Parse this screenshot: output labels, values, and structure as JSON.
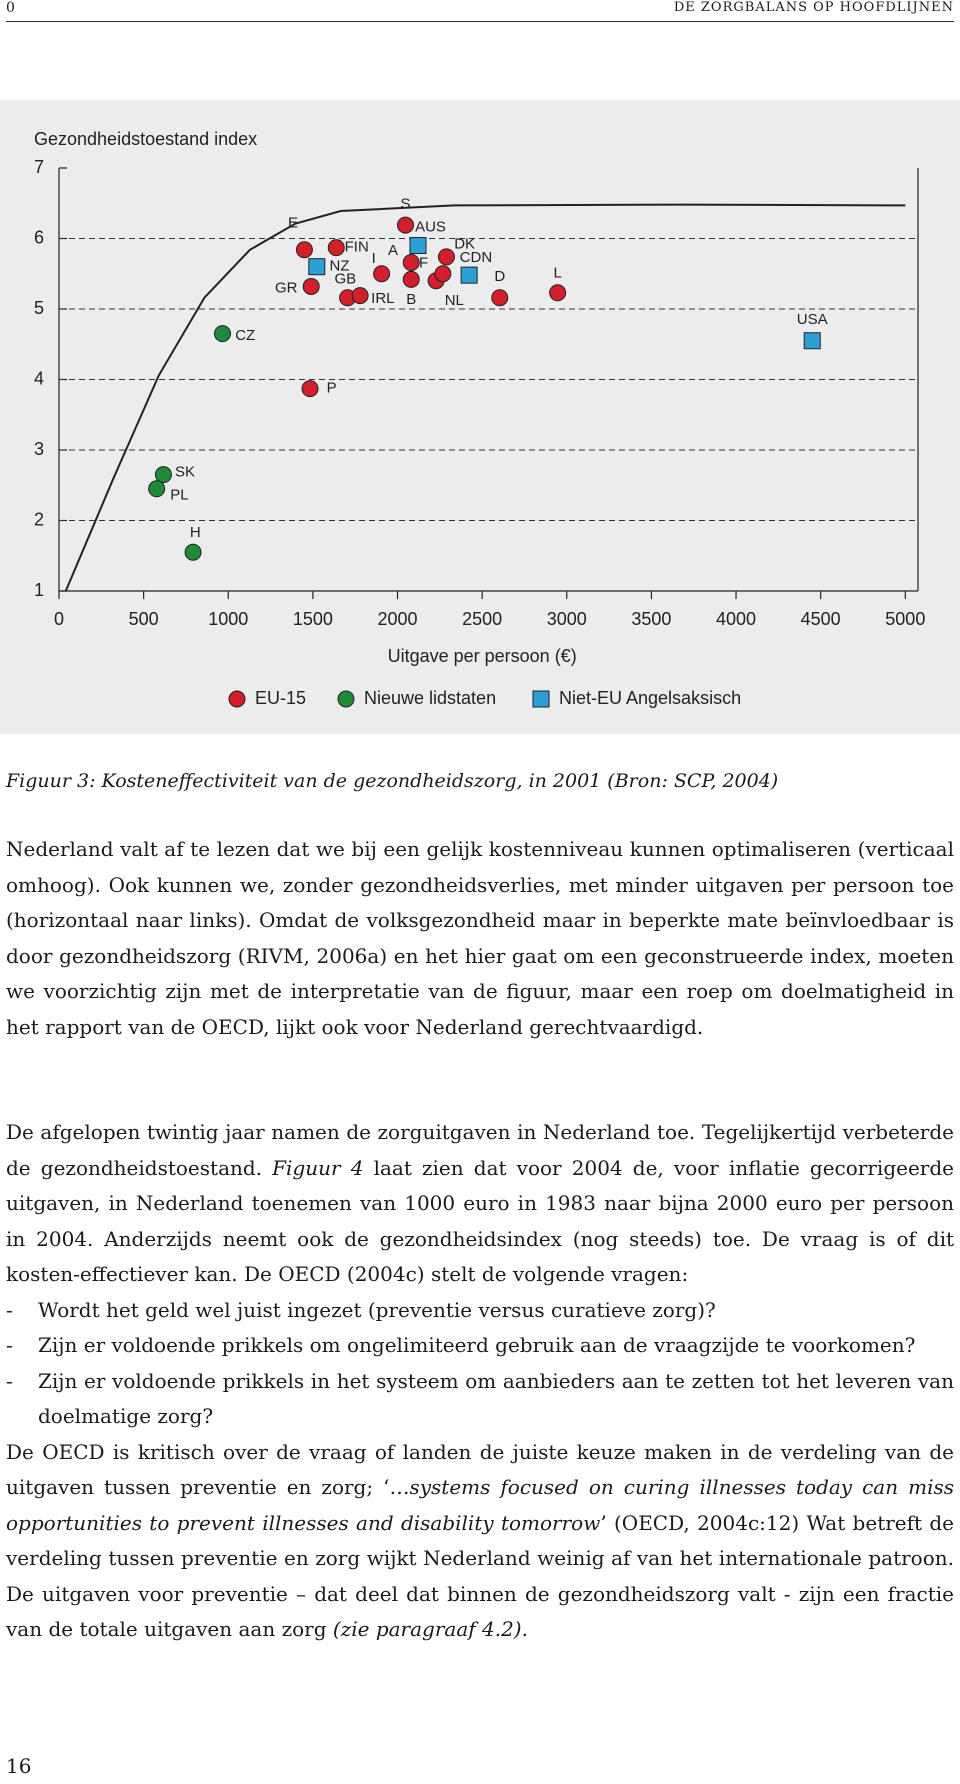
{
  "header": {
    "page_left": "0",
    "title": "DE ZORGBALANS OP HOOFDLIJNEN"
  },
  "chart_data": {
    "type": "scatter",
    "y_label": "Gezondheidstoestand index",
    "x_label": "Uitgave per persoon (€)",
    "xlim": [
      0,
      5075
    ],
    "ylim": [
      1,
      7
    ],
    "xticks": [
      0,
      500,
      1000,
      1500,
      2000,
      2500,
      3000,
      3500,
      4000,
      4500,
      5000
    ],
    "yticks": [
      1,
      2,
      3,
      4,
      5,
      6,
      7
    ],
    "grid": true,
    "series": [
      {
        "name": "EU-15",
        "color": "#d21f2c",
        "marker": "circle",
        "labels": [
          "E",
          "FIN",
          "GR",
          "GB",
          "IRL",
          "I",
          "S",
          "A",
          "B",
          "NL",
          "F",
          "DK",
          "D",
          "L",
          "P"
        ],
        "x": [
          1450,
          1638,
          1490,
          1705,
          1779,
          1906,
          2047,
          2081,
          2081,
          2228,
          2268,
          2289,
          2604,
          2946,
          1483
        ],
        "values": [
          5.84,
          5.87,
          5.32,
          5.16,
          5.19,
          5.5,
          6.19,
          5.66,
          5.42,
          5.4,
          5.5,
          5.74,
          5.16,
          5.23,
          3.87
        ]
      },
      {
        "name": "Nieuwe lidstaten",
        "color": "#1f8a3a",
        "marker": "circle",
        "labels": [
          "CZ",
          "SK",
          "PL",
          "H"
        ],
        "x": [
          966,
          617,
          577,
          792
        ],
        "values": [
          4.65,
          2.65,
          2.45,
          1.55
        ]
      },
      {
        "name": "Niet-EU Angelsaksisch",
        "color": "#2a9fd8",
        "marker": "square",
        "labels": [
          "NZ",
          "AUS",
          "CDN",
          "USA"
        ],
        "x": [
          1523,
          2121,
          2423,
          4450
        ],
        "values": [
          5.6,
          5.9,
          5.48,
          4.55
        ]
      }
    ],
    "curve": {
      "color": "#222",
      "x": [
        40,
        322,
        590,
        859,
        1128,
        1396,
        1664,
        2336,
        3678,
        5000
      ],
      "values": [
        1,
        2.6,
        4.06,
        5.16,
        5.84,
        6.21,
        6.39,
        6.47,
        6.48,
        6.47
      ]
    }
  },
  "caption": "Figuur 3: Kosteneffectiviteit van de gezondheidszorg, in 2001 (Bron: SCP, 2004)",
  "paragraph_1": "Nederland valt af te lezen dat we bij een gelijk kostenniveau kunnen optimaliseren (verticaal omhoog). Ook kunnen we, zonder gezondheidsverlies, met minder uitgaven per persoon toe (horizontaal naar links). Omdat de volksgezondheid maar in beperkte mate beïnvloedbaar is door gezondheidszorg (RIVM, 2006a) en het hier gaat om een geconstrueerde index, moeten we voorzichtig zijn met de interpretatie van de figuur, maar een roep om doelmatigheid in het rapport van de OECD, lijkt ook voor Nederland gerechtvaardigd.",
  "paragraph_2": [
    {
      "text": "De afgelopen twintig jaar namen de zorguitgaven in Nederland toe. Tegelijkertijd verbeterde de gezondheidstoestand. ",
      "italic": false
    },
    {
      "text": "Figuur 4",
      "italic": true
    },
    {
      "text": " laat zien dat voor 2004 de, voor inflatie gecorrigeerde uitgaven, in Nederland toenemen van 1000 euro in 1983 naar bijna 2000 euro per persoon in 2004. Anderzijds neemt ook de gezondheidsindex (nog steeds) toe. De vraag is of dit kosten-effectiever kan. De OECD (2004c) stelt de volgende vragen:",
      "italic": false
    }
  ],
  "bullets": [
    {
      "marker": "-",
      "text": "Wordt het geld wel juist ingezet (preventie versus curatieve zorg)?"
    },
    {
      "marker": "-",
      "text": "Zijn er voldoende prikkels om ongelimiteerd gebruik aan de vraagzijde te voorkomen?"
    },
    {
      "marker": "-",
      "text": "Zijn er voldoende prikkels in het systeem om aanbieders aan te zetten tot het leveren van doelmatige zorg?"
    }
  ],
  "paragraph_3": [
    {
      "text": "De OECD is kritisch over de vraag of landen de juiste keuze maken in de verdeling van de uitgaven tussen preventie en zorg; ‘",
      "italic": false
    },
    {
      "text": "…systems focused on curing illnesses today can miss opportunities to prevent illnesses and disability tomorrow",
      "italic": true
    },
    {
      "text": "’ (OECD, 2004c:12) Wat betreft de verdeling tussen preventie en zorg wijkt Nederland weinig af van het internationale patroon. De uitgaven voor preventie – dat deel dat binnen de gezondheidszorg valt - zijn een fractie van de totale uitgaven aan zorg ",
      "italic": false
    },
    {
      "text": "(zie paragraaf 4.2).",
      "italic": true
    }
  ],
  "page_number": "16"
}
